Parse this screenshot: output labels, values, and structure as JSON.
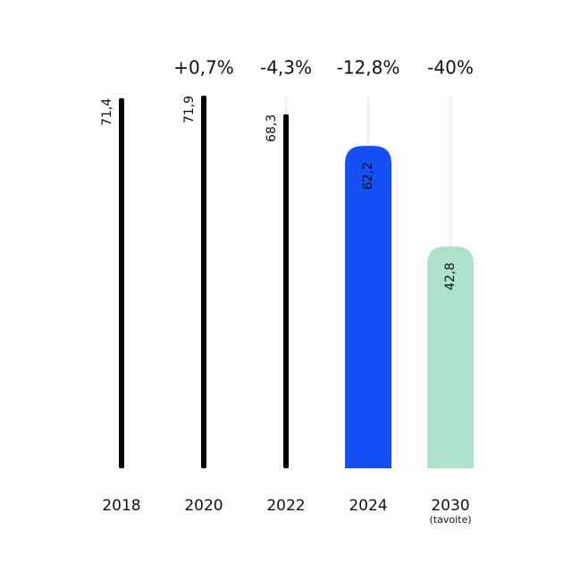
{
  "chart_data": {
    "type": "bar",
    "categories": [
      "2018",
      "2020",
      "2022",
      "2024",
      "2030"
    ],
    "category_notes": [
      null,
      null,
      null,
      null,
      "(tavoite)"
    ],
    "values": [
      71.4,
      71.9,
      68.3,
      62.2,
      42.8
    ],
    "value_labels": [
      "71,4",
      "71,9",
      "68,3",
      "62,2",
      "42,8"
    ],
    "changes": [
      null,
      "+0,7%",
      "-4,3%",
      "-12,8%",
      "-40%"
    ],
    "colors": [
      "#000000",
      "#000000",
      "#000000",
      "#1450f5",
      "#aee3cb"
    ]
  }
}
